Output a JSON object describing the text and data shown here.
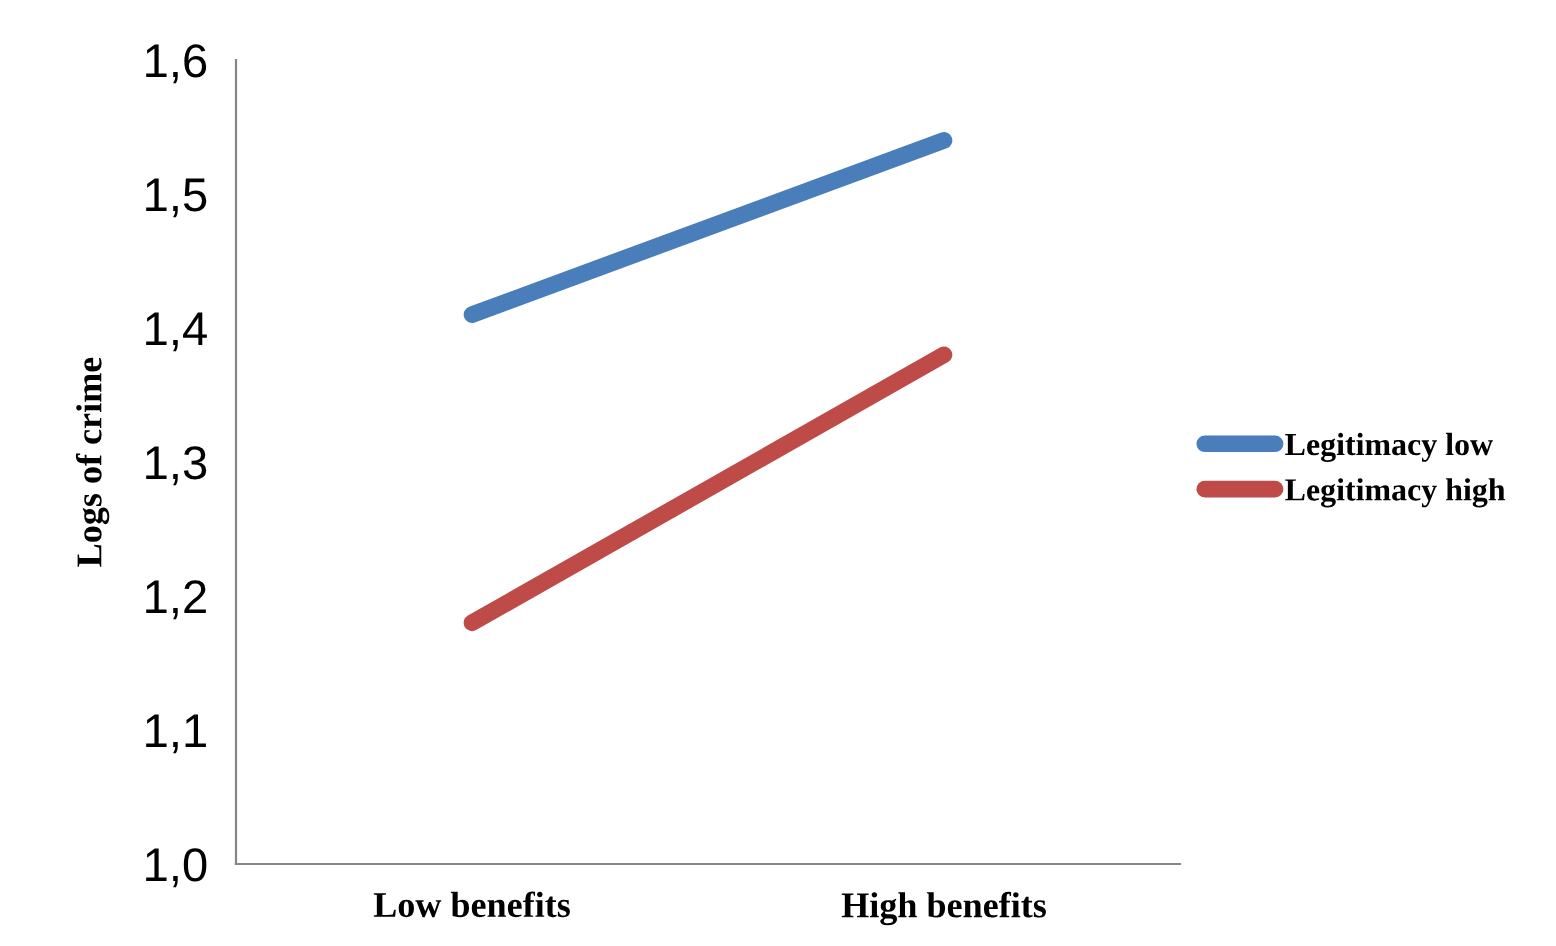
{
  "chart_data": {
    "type": "line",
    "ylabel": "Logs of crime",
    "categories": [
      "Low benefits",
      "High benefits"
    ],
    "series": [
      {
        "name": "Legitimacy low",
        "color": "#4a7ebb",
        "values": [
          1.41,
          1.54
        ]
      },
      {
        "name": "Legitimacy high",
        "color": "#be4b48",
        "values": [
          1.18,
          1.38
        ]
      }
    ],
    "ylim": [
      1.0,
      1.6
    ],
    "yticks": [
      {
        "value": 1.0,
        "label": "1,0"
      },
      {
        "value": 1.1,
        "label": "1,1"
      },
      {
        "value": 1.2,
        "label": "1,2"
      },
      {
        "value": 1.3,
        "label": "1,3"
      },
      {
        "value": 1.4,
        "label": "1,4"
      },
      {
        "value": 1.5,
        "label": "1,5"
      },
      {
        "value": 1.6,
        "label": "1,6"
      }
    ],
    "grid": false,
    "legend": "right",
    "marker": "none",
    "line_style": "solid"
  }
}
